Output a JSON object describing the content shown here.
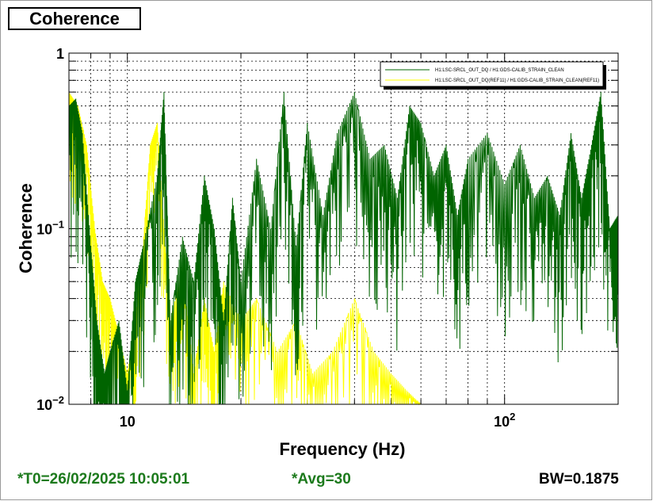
{
  "window": {
    "title": "Coherence"
  },
  "footer": {
    "t0": "*T0=26/02/2025 10:05:01",
    "avg": "*Avg=30",
    "bw": "BW=0.1875"
  },
  "colors": {
    "series1": "#006400",
    "series2": "#ffff00",
    "footer_green": "#1c7a1c"
  },
  "chart_data": {
    "type": "line",
    "xlabel": "Frequency (Hz)",
    "ylabel": "Coherence",
    "xscale": "log",
    "yscale": "log",
    "xlim": [
      7,
      200
    ],
    "ylim": [
      0.01,
      1
    ],
    "grid": true,
    "legend_position": "top-right",
    "x_tick_labels": [
      {
        "value": 10,
        "label": "10"
      },
      {
        "value": 100,
        "label": "10",
        "exp": "2"
      }
    ],
    "y_tick_labels": [
      {
        "value": 1,
        "label": "1",
        "exp": ""
      },
      {
        "value": 0.1,
        "label": "10",
        "exp": "−1"
      },
      {
        "value": 0.01,
        "label": "10",
        "exp": "−2"
      }
    ],
    "series": [
      {
        "name": "H1:LSC-SRCL_OUT_DQ / H1:GDS-CALIB_STRAIN_CLEAN",
        "color": "#006400",
        "x": [
          7.0,
          7.3,
          7.6,
          8.0,
          8.3,
          8.7,
          9.0,
          9.5,
          10.0,
          10.5,
          11.0,
          12.0,
          12.5,
          13.0,
          14.0,
          15.0,
          16.0,
          17.0,
          18.0,
          19.0,
          20.0,
          22.0,
          24.0,
          26.0,
          28.0,
          30.0,
          33.0,
          36.0,
          40.0,
          44.0,
          48.0,
          52.0,
          56.0,
          60.0,
          65.0,
          70.0,
          75.0,
          80.0,
          90.0,
          100.0,
          110.0,
          120.0,
          130.0,
          140.0,
          150.0,
          160.0,
          170.0,
          180.0,
          190.0,
          200.0
        ],
        "y": [
          0.5,
          0.55,
          0.35,
          0.08,
          0.03,
          0.015,
          0.02,
          0.03,
          0.012,
          0.05,
          0.08,
          0.2,
          0.6,
          0.03,
          0.09,
          0.05,
          0.2,
          0.1,
          0.03,
          0.15,
          0.05,
          0.25,
          0.1,
          0.6,
          0.08,
          0.4,
          0.12,
          0.35,
          0.6,
          0.25,
          0.3,
          0.15,
          0.5,
          0.4,
          0.2,
          0.3,
          0.12,
          0.25,
          0.35,
          0.18,
          0.3,
          0.15,
          0.2,
          0.12,
          0.35,
          0.15,
          0.3,
          0.6,
          0.1,
          0.12
        ]
      },
      {
        "name": "H1:LSC-SRCL_OUT_DQ(REF11) / H1:GDS-CALIB_STRAIN_CLEAN(REF11)",
        "color": "#ffff00",
        "x": [
          7.0,
          7.4,
          7.8,
          8.2,
          8.6,
          9.0,
          9.5,
          10.0,
          10.5,
          11.0,
          11.5,
          12.0,
          12.5,
          13.0,
          14.0,
          15.0,
          16.0,
          17.0,
          18.0,
          20.0,
          22.0,
          25.0,
          28.0,
          31.0,
          35.0,
          40.0,
          45.0,
          50.0,
          55.0,
          60.0
        ],
        "y": [
          0.6,
          0.5,
          0.3,
          0.1,
          0.05,
          0.04,
          0.025,
          0.015,
          0.03,
          0.08,
          0.3,
          0.4,
          0.1,
          0.03,
          0.06,
          0.015,
          0.04,
          0.02,
          0.05,
          0.03,
          0.04,
          0.02,
          0.03,
          0.015,
          0.02,
          0.04,
          0.02,
          0.015,
          0.012,
          0.01
        ]
      }
    ]
  }
}
